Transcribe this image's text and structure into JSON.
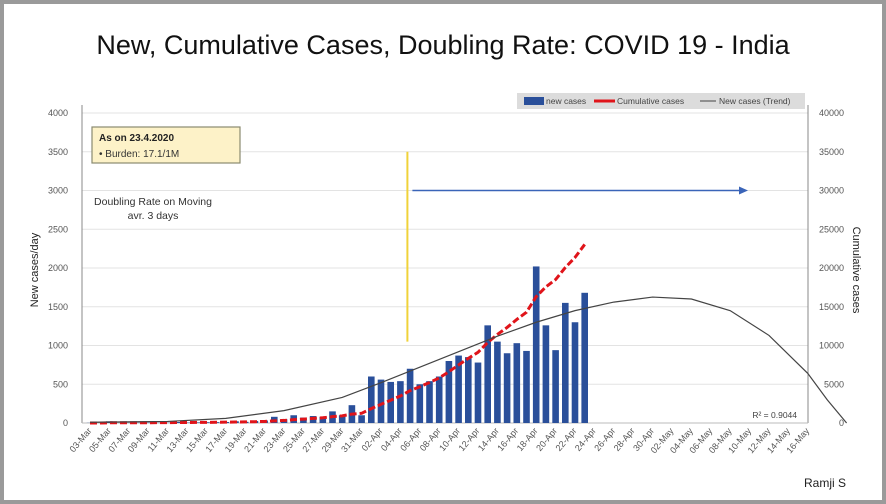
{
  "chart_data": {
    "type": "bar+line",
    "title": "New, Cumulative Cases, Doubling Rate: COVID 19 - India",
    "ylabel": "New cases/day",
    "y2label": "Cumulative cases",
    "ylim": [
      0,
      4000
    ],
    "y2lim": [
      0,
      40000
    ],
    "yticks": [
      "0",
      "500",
      "1000",
      "1500",
      "2000",
      "2500",
      "3000",
      "3500",
      "4000"
    ],
    "y2ticks": [
      "0",
      "5000",
      "10000",
      "15000",
      "20000",
      "25000",
      "30000",
      "35000",
      "40000"
    ],
    "xticks": [
      "03-Mar",
      "05-Mar",
      "07-Mar",
      "09-Mar",
      "11-Mar",
      "13-Mar",
      "15-Mar",
      "17-Mar",
      "19-Mar",
      "21-Mar",
      "23-Mar",
      "25-Mar",
      "27-Mar",
      "29-Mar",
      "31-Mar",
      "02-Apr",
      "04-Apr",
      "06-Apr",
      "08-Apr",
      "10-Apr",
      "12-Apr",
      "14-Apr",
      "16-Apr",
      "18-Apr",
      "20-Apr",
      "22-Apr",
      "24-Apr",
      "26-Apr",
      "28-Apr",
      "30-Apr",
      "02-May",
      "04-May",
      "06-May",
      "08-May",
      "10-May",
      "12-May",
      "14-May",
      "16-May"
    ],
    "grid": true,
    "legend_position": "top-right",
    "colors": {
      "bars": "#2a4f9a",
      "cumulative": "#e0141a",
      "trend": "#444444",
      "marker": "#f0d23a",
      "arrow": "#3a64b8"
    },
    "start_date": "03-Mar",
    "series": [
      {
        "name": "new cases",
        "kind": "bar",
        "axis": "left",
        "values": [
          2,
          1,
          22,
          1,
          2,
          3,
          5,
          3,
          4,
          13,
          6,
          8,
          10,
          11,
          13,
          22,
          15,
          25,
          32,
          80,
          50,
          100,
          70,
          90,
          80,
          150,
          100,
          230,
          100,
          600,
          560,
          530,
          540,
          700,
          500,
          540,
          600,
          800,
          870,
          850,
          780,
          1260,
          1050,
          900,
          1030,
          930,
          2020,
          1260,
          940,
          1550,
          1300,
          1680
        ]
      },
      {
        "name": "Cumulative cases",
        "kind": "line-dashed",
        "axis": "right",
        "values": [
          5,
          6,
          28,
          29,
          31,
          34,
          39,
          42,
          46,
          59,
          65,
          73,
          83,
          94,
          107,
          129,
          144,
          169,
          201,
          281,
          331,
          431,
          501,
          591,
          671,
          821,
          921,
          1151,
          1251,
          1851,
          2411,
          2941,
          3481,
          4181,
          4681,
          5221,
          5821,
          6621,
          7491,
          8341,
          9121,
          10381,
          11431,
          12331,
          13361,
          14291,
          16311,
          17571,
          18511,
          20061,
          21361,
          23041
        ]
      },
      {
        "name": "New cases (Trend)",
        "kind": "line",
        "axis": "left",
        "points": [
          [
            0,
            10
          ],
          [
            8,
            20
          ],
          [
            14,
            60
          ],
          [
            20,
            160
          ],
          [
            26,
            330
          ],
          [
            30,
            520
          ],
          [
            34,
            720
          ],
          [
            38,
            920
          ],
          [
            42,
            1120
          ],
          [
            46,
            1300
          ],
          [
            50,
            1450
          ],
          [
            54,
            1560
          ],
          [
            58,
            1625
          ],
          [
            62,
            1600
          ],
          [
            66,
            1450
          ],
          [
            70,
            1130
          ],
          [
            74,
            640
          ],
          [
            76,
            300
          ],
          [
            78,
            0
          ]
        ]
      }
    ],
    "annotations": {
      "box_title": "As on 23.4.2020",
      "box_line": "• Burden: 17.1/1M",
      "doubling_text_1": "Doubling Rate on Moving",
      "doubling_text_2": "avr. 3 days",
      "r_squared": "R² = 0.9044",
      "marker_date_index": 32,
      "arrow_value": 3000
    },
    "author": "Ramji S"
  }
}
